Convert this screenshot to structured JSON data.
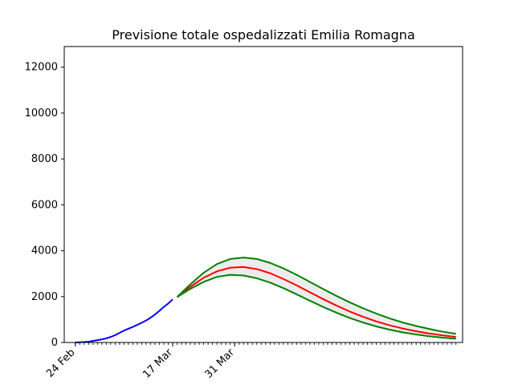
{
  "chart_data": {
    "type": "line",
    "title": "Previsione totale ospedalizzati Emilia Romagna",
    "xlabel": "",
    "ylabel": "",
    "x_start_date": "2020-02-24",
    "x_tick_labels": [
      {
        "label": "24 Feb",
        "day": 0
      },
      {
        "label": "17 Mar",
        "day": 22
      },
      {
        "label": "31 Mar",
        "day": 36
      }
    ],
    "xlim": [
      -2.5,
      87.5
    ],
    "ylim": [
      0,
      12900
    ],
    "y_ticks": [
      0,
      2000,
      4000,
      6000,
      8000,
      10000,
      12000
    ],
    "grid": false,
    "minor_x_ticks_every_day": true,
    "series": [
      {
        "color": "#0000ff",
        "x": [
          0,
          1,
          2,
          3,
          4,
          5,
          6,
          7,
          8,
          9,
          10,
          11,
          12,
          13,
          14,
          15,
          16,
          17,
          18,
          19,
          20,
          21,
          22
        ],
        "values": [
          0,
          10,
          20,
          35,
          70,
          100,
          140,
          180,
          240,
          320,
          420,
          520,
          600,
          680,
          770,
          860,
          960,
          1080,
          1220,
          1380,
          1550,
          1700,
          1880
        ]
      },
      {
        "color": "#ff0000",
        "x": [
          23,
          26,
          29,
          32,
          35,
          38,
          41,
          44,
          47,
          50,
          53,
          56,
          59,
          62,
          65,
          68,
          71,
          74,
          77,
          80,
          83,
          86
        ],
        "values": [
          1980,
          2430,
          2820,
          3100,
          3260,
          3290,
          3200,
          3020,
          2770,
          2490,
          2190,
          1890,
          1610,
          1350,
          1120,
          920,
          750,
          610,
          490,
          390,
          310,
          240
        ]
      },
      {
        "color": "#008000",
        "x": [
          23,
          26,
          29,
          32,
          35,
          38,
          41,
          44,
          47,
          50,
          53,
          56,
          59,
          62,
          65,
          68,
          71,
          74,
          77,
          80,
          83,
          86
        ],
        "values": [
          1980,
          2540,
          3040,
          3420,
          3640,
          3700,
          3640,
          3470,
          3230,
          2950,
          2640,
          2330,
          2030,
          1750,
          1490,
          1260,
          1050,
          870,
          720,
          590,
          470,
          380
        ]
      },
      {
        "color": "#008000",
        "x": [
          23,
          26,
          29,
          32,
          35,
          38,
          41,
          44,
          47,
          50,
          53,
          56,
          59,
          62,
          65,
          68,
          71,
          74,
          77,
          80,
          83,
          86
        ],
        "values": [
          1980,
          2340,
          2640,
          2860,
          2950,
          2920,
          2800,
          2610,
          2370,
          2100,
          1820,
          1550,
          1300,
          1070,
          870,
          700,
          560,
          440,
          350,
          270,
          210,
          160
        ]
      }
    ],
    "band": {
      "between_series": [
        2,
        3
      ],
      "fill": "#ececec"
    }
  }
}
